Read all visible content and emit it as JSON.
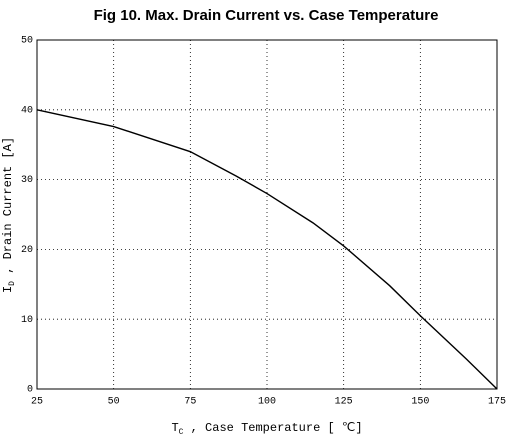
{
  "chart_data": {
    "type": "line",
    "title": "Fig 10.  Max. Drain Current vs. Case Temperature",
    "x_label": {
      "symbol": "T",
      "subscript": "C",
      "text": " , Case Temperature  [ ℃]"
    },
    "y_label": {
      "symbol": "I",
      "subscript": "D",
      "text": " , Drain Current  [A]"
    },
    "x": [
      25,
      50,
      75,
      90,
      100,
      115,
      125,
      140,
      150,
      165,
      175
    ],
    "series": [
      {
        "name": "ID",
        "color": "#000000",
        "values": [
          40,
          37.6,
          34,
          30.5,
          28,
          23.8,
          20.5,
          14.8,
          10.5,
          4.3,
          0
        ]
      }
    ],
    "xlim": [
      25,
      175
    ],
    "xticks": [
      25,
      50,
      75,
      100,
      125,
      150,
      175
    ],
    "ylim": [
      0,
      50
    ],
    "yticks": [
      0,
      10,
      20,
      30,
      40,
      50
    ],
    "grid": true
  }
}
